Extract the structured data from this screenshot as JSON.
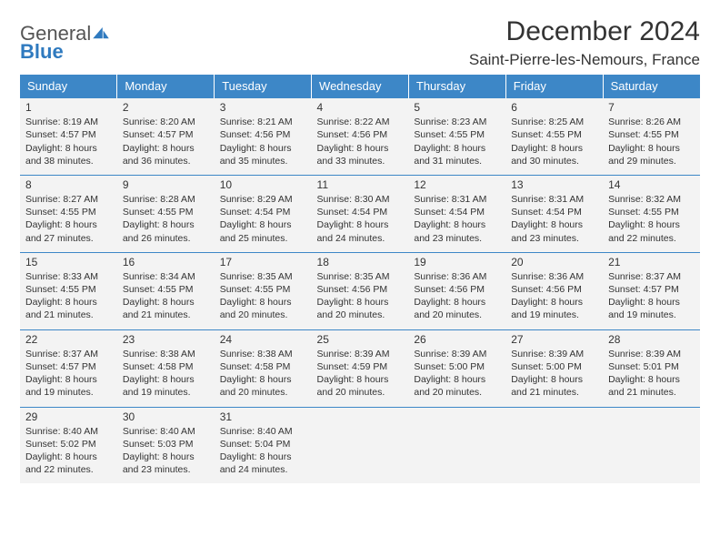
{
  "logo": {
    "general": "General",
    "blue": "Blue"
  },
  "header": {
    "month_title": "December 2024",
    "location": "Saint-Pierre-les-Nemours, France"
  },
  "colors": {
    "header_bg": "#3d87c7",
    "header_text": "#ffffff",
    "cell_bg": "#f3f3f3",
    "rule": "#3d87c7",
    "text": "#333333",
    "logo_blue": "#2f7abf"
  },
  "day_names": [
    "Sunday",
    "Monday",
    "Tuesday",
    "Wednesday",
    "Thursday",
    "Friday",
    "Saturday"
  ],
  "days": {
    "1": {
      "sunrise": "Sunrise: 8:19 AM",
      "sunset": "Sunset: 4:57 PM",
      "dl1": "Daylight: 8 hours",
      "dl2": "and 38 minutes."
    },
    "2": {
      "sunrise": "Sunrise: 8:20 AM",
      "sunset": "Sunset: 4:57 PM",
      "dl1": "Daylight: 8 hours",
      "dl2": "and 36 minutes."
    },
    "3": {
      "sunrise": "Sunrise: 8:21 AM",
      "sunset": "Sunset: 4:56 PM",
      "dl1": "Daylight: 8 hours",
      "dl2": "and 35 minutes."
    },
    "4": {
      "sunrise": "Sunrise: 8:22 AM",
      "sunset": "Sunset: 4:56 PM",
      "dl1": "Daylight: 8 hours",
      "dl2": "and 33 minutes."
    },
    "5": {
      "sunrise": "Sunrise: 8:23 AM",
      "sunset": "Sunset: 4:55 PM",
      "dl1": "Daylight: 8 hours",
      "dl2": "and 31 minutes."
    },
    "6": {
      "sunrise": "Sunrise: 8:25 AM",
      "sunset": "Sunset: 4:55 PM",
      "dl1": "Daylight: 8 hours",
      "dl2": "and 30 minutes."
    },
    "7": {
      "sunrise": "Sunrise: 8:26 AM",
      "sunset": "Sunset: 4:55 PM",
      "dl1": "Daylight: 8 hours",
      "dl2": "and 29 minutes."
    },
    "8": {
      "sunrise": "Sunrise: 8:27 AM",
      "sunset": "Sunset: 4:55 PM",
      "dl1": "Daylight: 8 hours",
      "dl2": "and 27 minutes."
    },
    "9": {
      "sunrise": "Sunrise: 8:28 AM",
      "sunset": "Sunset: 4:55 PM",
      "dl1": "Daylight: 8 hours",
      "dl2": "and 26 minutes."
    },
    "10": {
      "sunrise": "Sunrise: 8:29 AM",
      "sunset": "Sunset: 4:54 PM",
      "dl1": "Daylight: 8 hours",
      "dl2": "and 25 minutes."
    },
    "11": {
      "sunrise": "Sunrise: 8:30 AM",
      "sunset": "Sunset: 4:54 PM",
      "dl1": "Daylight: 8 hours",
      "dl2": "and 24 minutes."
    },
    "12": {
      "sunrise": "Sunrise: 8:31 AM",
      "sunset": "Sunset: 4:54 PM",
      "dl1": "Daylight: 8 hours",
      "dl2": "and 23 minutes."
    },
    "13": {
      "sunrise": "Sunrise: 8:31 AM",
      "sunset": "Sunset: 4:54 PM",
      "dl1": "Daylight: 8 hours",
      "dl2": "and 23 minutes."
    },
    "14": {
      "sunrise": "Sunrise: 8:32 AM",
      "sunset": "Sunset: 4:55 PM",
      "dl1": "Daylight: 8 hours",
      "dl2": "and 22 minutes."
    },
    "15": {
      "sunrise": "Sunrise: 8:33 AM",
      "sunset": "Sunset: 4:55 PM",
      "dl1": "Daylight: 8 hours",
      "dl2": "and 21 minutes."
    },
    "16": {
      "sunrise": "Sunrise: 8:34 AM",
      "sunset": "Sunset: 4:55 PM",
      "dl1": "Daylight: 8 hours",
      "dl2": "and 21 minutes."
    },
    "17": {
      "sunrise": "Sunrise: 8:35 AM",
      "sunset": "Sunset: 4:55 PM",
      "dl1": "Daylight: 8 hours",
      "dl2": "and 20 minutes."
    },
    "18": {
      "sunrise": "Sunrise: 8:35 AM",
      "sunset": "Sunset: 4:56 PM",
      "dl1": "Daylight: 8 hours",
      "dl2": "and 20 minutes."
    },
    "19": {
      "sunrise": "Sunrise: 8:36 AM",
      "sunset": "Sunset: 4:56 PM",
      "dl1": "Daylight: 8 hours",
      "dl2": "and 20 minutes."
    },
    "20": {
      "sunrise": "Sunrise: 8:36 AM",
      "sunset": "Sunset: 4:56 PM",
      "dl1": "Daylight: 8 hours",
      "dl2": "and 19 minutes."
    },
    "21": {
      "sunrise": "Sunrise: 8:37 AM",
      "sunset": "Sunset: 4:57 PM",
      "dl1": "Daylight: 8 hours",
      "dl2": "and 19 minutes."
    },
    "22": {
      "sunrise": "Sunrise: 8:37 AM",
      "sunset": "Sunset: 4:57 PM",
      "dl1": "Daylight: 8 hours",
      "dl2": "and 19 minutes."
    },
    "23": {
      "sunrise": "Sunrise: 8:38 AM",
      "sunset": "Sunset: 4:58 PM",
      "dl1": "Daylight: 8 hours",
      "dl2": "and 19 minutes."
    },
    "24": {
      "sunrise": "Sunrise: 8:38 AM",
      "sunset": "Sunset: 4:58 PM",
      "dl1": "Daylight: 8 hours",
      "dl2": "and 20 minutes."
    },
    "25": {
      "sunrise": "Sunrise: 8:39 AM",
      "sunset": "Sunset: 4:59 PM",
      "dl1": "Daylight: 8 hours",
      "dl2": "and 20 minutes."
    },
    "26": {
      "sunrise": "Sunrise: 8:39 AM",
      "sunset": "Sunset: 5:00 PM",
      "dl1": "Daylight: 8 hours",
      "dl2": "and 20 minutes."
    },
    "27": {
      "sunrise": "Sunrise: 8:39 AM",
      "sunset": "Sunset: 5:00 PM",
      "dl1": "Daylight: 8 hours",
      "dl2": "and 21 minutes."
    },
    "28": {
      "sunrise": "Sunrise: 8:39 AM",
      "sunset": "Sunset: 5:01 PM",
      "dl1": "Daylight: 8 hours",
      "dl2": "and 21 minutes."
    },
    "29": {
      "sunrise": "Sunrise: 8:40 AM",
      "sunset": "Sunset: 5:02 PM",
      "dl1": "Daylight: 8 hours",
      "dl2": "and 22 minutes."
    },
    "30": {
      "sunrise": "Sunrise: 8:40 AM",
      "sunset": "Sunset: 5:03 PM",
      "dl1": "Daylight: 8 hours",
      "dl2": "and 23 minutes."
    },
    "31": {
      "sunrise": "Sunrise: 8:40 AM",
      "sunset": "Sunset: 5:04 PM",
      "dl1": "Daylight: 8 hours",
      "dl2": "and 24 minutes."
    }
  },
  "weeks": [
    [
      1,
      2,
      3,
      4,
      5,
      6,
      7
    ],
    [
      8,
      9,
      10,
      11,
      12,
      13,
      14
    ],
    [
      15,
      16,
      17,
      18,
      19,
      20,
      21
    ],
    [
      22,
      23,
      24,
      25,
      26,
      27,
      28
    ],
    [
      29,
      30,
      31,
      null,
      null,
      null,
      null
    ]
  ]
}
